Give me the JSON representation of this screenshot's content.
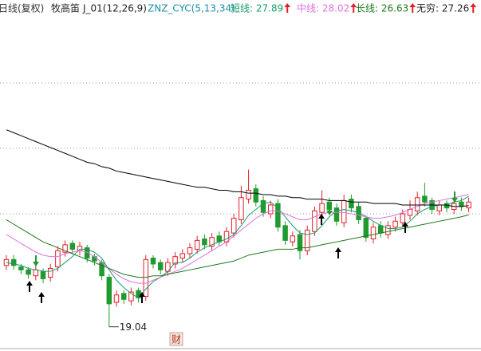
{
  "chart_data": {
    "type": "candlestick",
    "header": {
      "period": "日线(复权)",
      "stock": "牧高笛",
      "indicator1": "J_01(12,26,9)",
      "indicator2": "ZNZ_CYC(5,13,34)"
    },
    "ylim": [
      17.4,
      41.2
    ],
    "up_color": "#e0202a",
    "down_color": "#1f9a2e",
    "open": [
      23.2,
      23.6,
      23.1,
      22.9,
      22.5,
      22.8,
      22.4,
      23.1,
      24.1,
      24.7,
      24.2,
      24.4,
      23.8,
      23.4,
      22.4,
      20.7,
      21.3,
      20.8,
      21.5,
      21.1,
      23.7,
      23.4,
      22.8,
      23.3,
      23.7,
      24.0,
      24.3,
      25.0,
      24.5,
      25.2,
      24.8,
      25.4,
      26.3,
      27.7,
      28.4,
      27.6,
      26.7,
      27.4,
      25.9,
      24.8,
      25.3,
      24.2,
      25.5,
      26.8,
      27.5,
      27.1,
      26.1,
      27.7,
      27.2,
      26.4,
      25.0,
      25.9,
      25.3,
      25.8,
      26.1,
      26.6,
      26.9,
      27.9,
      27.6,
      26.9,
      27.4,
      27.0,
      27.5,
      27.1
    ],
    "high": [
      23.9,
      23.9,
      23.3,
      23.1,
      23.2,
      23.0,
      23.3,
      24.5,
      24.9,
      24.9,
      24.8,
      24.6,
      24.0,
      23.6,
      22.6,
      21.5,
      21.5,
      21.7,
      21.7,
      23.9,
      23.9,
      23.6,
      23.7,
      24.1,
      24.3,
      24.7,
      25.2,
      25.3,
      25.4,
      25.5,
      25.8,
      26.7,
      28.6,
      29.7,
      28.7,
      27.9,
      27.6,
      27.7,
      26.2,
      25.5,
      25.6,
      25.9,
      27.2,
      28.3,
      27.8,
      27.4,
      28.0,
      28.0,
      27.5,
      26.6,
      26.1,
      26.2,
      26.2,
      26.5,
      27.0,
      27.6,
      28.2,
      28.8,
      27.8,
      27.6,
      27.6,
      27.7,
      27.8,
      27.8
    ],
    "low": [
      22.9,
      22.9,
      22.6,
      22.3,
      22.2,
      22.0,
      22.1,
      22.8,
      23.8,
      24.0,
      23.9,
      23.4,
      23.2,
      22.2,
      19.04,
      20.4,
      20.6,
      20.5,
      20.7,
      20.8,
      23.0,
      22.6,
      22.5,
      23.0,
      23.4,
      23.7,
      24.0,
      24.3,
      24.2,
      24.5,
      24.5,
      25.1,
      26.0,
      27.4,
      27.2,
      26.5,
      26.4,
      25.5,
      24.6,
      24.5,
      23.6,
      23.9,
      25.2,
      26.5,
      26.7,
      25.9,
      25.8,
      26.8,
      26.0,
      24.8,
      24.7,
      25.1,
      25.0,
      25.5,
      25.8,
      26.3,
      26.6,
      27.2,
      26.7,
      26.6,
      26.8,
      26.7,
      26.9,
      26.8
    ],
    "close": [
      23.6,
      23.2,
      22.9,
      22.6,
      22.9,
      22.3,
      23.0,
      24.2,
      24.6,
      24.3,
      24.5,
      23.7,
      23.5,
      22.5,
      20.6,
      21.2,
      20.9,
      21.4,
      21.0,
      23.6,
      23.3,
      22.9,
      23.4,
      23.8,
      24.0,
      24.4,
      24.9,
      24.6,
      25.1,
      24.8,
      25.5,
      26.4,
      27.8,
      28.3,
      27.5,
      26.8,
      27.3,
      25.8,
      24.9,
      25.2,
      24.2,
      25.6,
      26.9,
      27.4,
      27.0,
      26.2,
      27.6,
      27.1,
      26.3,
      25.1,
      25.8,
      25.4,
      25.9,
      26.2,
      26.7,
      27.0,
      27.8,
      27.5,
      27.0,
      27.3,
      27.1,
      27.4,
      27.2,
      27.5
    ],
    "low_marker_index": 14,
    "event_marker": "财",
    "series": [
      {
        "name": "短线",
        "legend": "短线: 27.89",
        "color": "#1a9c6a",
        "values": [
          23.4,
          23.3,
          23.2,
          23.0,
          22.9,
          22.8,
          22.8,
          23.0,
          23.4,
          23.8,
          24.3,
          24.3,
          24.1,
          23.7,
          22.9,
          22.2,
          21.7,
          21.3,
          21.0,
          21.6,
          22.1,
          22.4,
          22.8,
          23.4,
          23.4,
          23.7,
          24.1,
          24.4,
          24.6,
          24.8,
          25.0,
          25.3,
          25.9,
          26.6,
          27.0,
          27.4,
          27.5,
          27.1,
          26.5,
          25.9,
          25.4,
          25.3,
          25.4,
          25.9,
          26.5,
          26.9,
          27.0,
          26.9,
          26.8,
          26.5,
          26.2,
          25.9,
          25.7,
          25.7,
          25.8,
          26.2,
          26.7,
          27.0,
          27.2,
          27.3,
          27.3,
          27.5,
          27.6,
          27.89
        ]
      },
      {
        "name": "中线",
        "legend": "中线: 28.02",
        "color": "#e070e0",
        "values": [
          25.3,
          25.0,
          24.7,
          24.4,
          24.1,
          23.9,
          23.8,
          23.8,
          24.0,
          24.1,
          24.2,
          24.1,
          23.8,
          23.4,
          23.0,
          22.6,
          22.3,
          22.1,
          22.0,
          22.0,
          22.2,
          22.4,
          22.6,
          22.8,
          23.0,
          23.3,
          23.6,
          23.9,
          24.2,
          24.5,
          24.8,
          25.2,
          25.6,
          26.0,
          26.4,
          26.7,
          26.9,
          26.9,
          26.7,
          26.5,
          26.3,
          26.3,
          26.5,
          26.7,
          26.8,
          26.8,
          26.8,
          26.7,
          26.6,
          26.5,
          26.4,
          26.4,
          26.5,
          26.6,
          26.8,
          27.0,
          27.2,
          27.4,
          27.5,
          27.6,
          27.7,
          27.8,
          27.9,
          28.02
        ]
      },
      {
        "name": "长线",
        "legend": "长线: 26.63",
        "color": "#1e7a1e",
        "values": [
          26.3,
          26.0,
          25.7,
          25.4,
          25.1,
          24.8,
          24.6,
          24.4,
          24.2,
          24.0,
          23.8,
          23.6,
          23.4,
          23.2,
          23.0,
          22.8,
          22.6,
          22.5,
          22.4,
          22.4,
          22.5,
          22.5,
          22.6,
          22.7,
          22.8,
          22.9,
          23.0,
          23.1,
          23.2,
          23.3,
          23.4,
          23.5,
          23.7,
          23.9,
          24.0,
          24.1,
          24.2,
          24.3,
          24.3,
          24.3,
          24.4,
          24.4,
          24.5,
          24.6,
          24.7,
          24.8,
          24.9,
          25.0,
          25.1,
          25.2,
          25.3,
          25.4,
          25.5,
          25.6,
          25.7,
          25.8,
          25.9,
          26.0,
          26.1,
          26.2,
          26.3,
          26.4,
          26.5,
          26.63
        ]
      },
      {
        "name": "无穷",
        "legend": "无穷: 27.26",
        "color": "#000000",
        "values": [
          32.4,
          32.2,
          32.0,
          31.8,
          31.6,
          31.4,
          31.2,
          31.0,
          30.8,
          30.6,
          30.4,
          30.2,
          30.1,
          29.9,
          29.8,
          29.6,
          29.5,
          29.4,
          29.3,
          29.2,
          29.1,
          29.0,
          28.9,
          28.8,
          28.7,
          28.6,
          28.5,
          28.5,
          28.4,
          28.3,
          28.3,
          28.2,
          28.2,
          28.1,
          28.1,
          28.0,
          28.0,
          27.9,
          27.9,
          27.8,
          27.8,
          27.7,
          27.7,
          27.7,
          27.6,
          27.6,
          27.6,
          27.5,
          27.5,
          27.5,
          27.4,
          27.4,
          27.4,
          27.4,
          27.3,
          27.3,
          27.3,
          27.3,
          27.3,
          27.3,
          27.3,
          27.2,
          27.2,
          27.26
        ]
      }
    ]
  }
}
